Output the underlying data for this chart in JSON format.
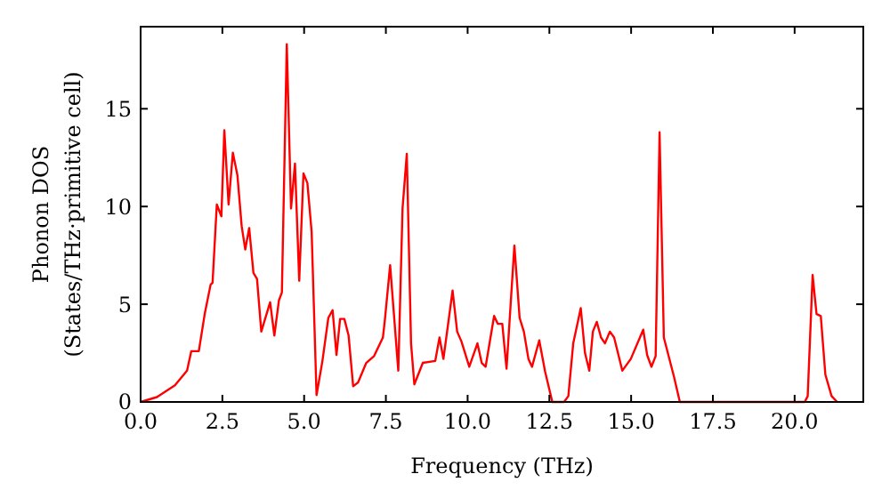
{
  "chart_data": {
    "type": "line",
    "xlabel": "Frequency (THz)",
    "ylabel": "Phonon DOS\n(States/THz·primitive cell)",
    "xlim": [
      0,
      22.1
    ],
    "ylim": [
      0,
      19.2
    ],
    "xticks": [
      {
        "value": 0,
        "label": "0.0"
      },
      {
        "value": 2.5,
        "label": "2.5"
      },
      {
        "value": 5,
        "label": "5.0"
      },
      {
        "value": 7.5,
        "label": "7.5"
      },
      {
        "value": 10,
        "label": "10.0"
      },
      {
        "value": 12.5,
        "label": "12.5"
      },
      {
        "value": 15,
        "label": "15.0"
      },
      {
        "value": 17.5,
        "label": "17.5"
      },
      {
        "value": 20,
        "label": "20.0"
      }
    ],
    "yticks": [
      0,
      5,
      10,
      15
    ],
    "grid": false,
    "marker": "none",
    "line_style": "solid",
    "series": [
      {
        "color": "#ff0000",
        "x": [
          0,
          0.5,
          1.05,
          1.42,
          1.55,
          1.78,
          1.96,
          2.14,
          2.2,
          2.33,
          2.47,
          2.56,
          2.69,
          2.82,
          2.96,
          3.09,
          3.2,
          3.32,
          3.45,
          3.56,
          3.69,
          3.96,
          4.09,
          4.23,
          4.32,
          4.47,
          4.6,
          4.72,
          4.85,
          4.98,
          5.1,
          5.23,
          5.38,
          5.56,
          5.74,
          5.87,
          5.99,
          6.1,
          6.23,
          6.36,
          6.5,
          6.65,
          6.9,
          7.14,
          7.41,
          7.47,
          7.63,
          7.88,
          8.01,
          8.14,
          8.27,
          8.37,
          8.63,
          9.01,
          9.14,
          9.26,
          9.54,
          9.68,
          9.81,
          10.05,
          10.3,
          10.43,
          10.55,
          10.81,
          10.92,
          11.06,
          11.19,
          11.43,
          11.59,
          11.72,
          11.86,
          11.97,
          12.19,
          12.37,
          12.59,
          12.95,
          13.08,
          13.23,
          13.46,
          13.59,
          13.72,
          13.83,
          13.95,
          14.08,
          14.2,
          14.35,
          14.48,
          14.73,
          14.99,
          15.37,
          15.49,
          15.62,
          15.75,
          15.87,
          16.0,
          16.31,
          16.49,
          20.31,
          20.4,
          20.55,
          20.67,
          20.8,
          20.94,
          21.13,
          21.3
        ],
        "values": [
          0,
          0.25,
          0.85,
          1.6,
          2.6,
          2.6,
          4.5,
          6.0,
          6.1,
          10.1,
          9.5,
          13.9,
          10.1,
          12.75,
          11.6,
          9.0,
          7.8,
          8.9,
          6.6,
          6.3,
          3.6,
          5.1,
          3.4,
          5.2,
          5.6,
          18.3,
          9.9,
          12.2,
          6.2,
          11.7,
          11.2,
          8.7,
          0.35,
          2.1,
          4.3,
          4.7,
          2.4,
          4.25,
          4.25,
          3.4,
          0.8,
          1.0,
          2.0,
          2.35,
          3.3,
          4.2,
          7.0,
          1.6,
          9.9,
          12.7,
          3.0,
          0.9,
          2.0,
          2.1,
          3.3,
          2.2,
          5.7,
          3.6,
          3.1,
          1.8,
          3.0,
          2.0,
          1.8,
          4.4,
          4.0,
          4.0,
          1.7,
          8.0,
          4.3,
          3.6,
          2.2,
          1.8,
          3.15,
          1.55,
          0,
          0,
          0.3,
          3.0,
          4.8,
          2.5,
          1.6,
          3.6,
          4.1,
          3.3,
          3.0,
          3.6,
          3.3,
          1.6,
          2.2,
          3.7,
          2.4,
          1.8,
          2.35,
          13.8,
          3.3,
          1.3,
          0,
          0,
          0.3,
          6.5,
          4.5,
          4.4,
          1.4,
          0.3,
          0
        ]
      }
    ]
  }
}
